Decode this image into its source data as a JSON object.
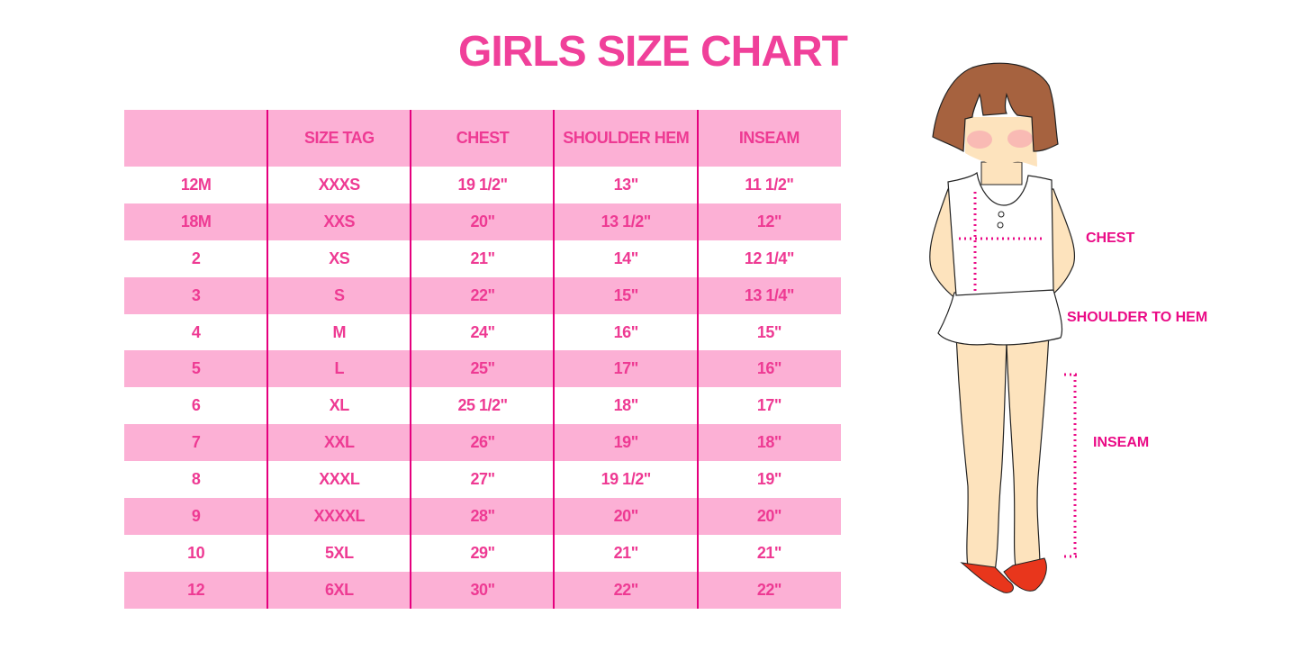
{
  "title": "GIRLS SIZE CHART",
  "table": {
    "headers": [
      "",
      "SIZE TAG",
      "CHEST",
      "SHOULDER HEM",
      "INSEAM"
    ],
    "rows": [
      [
        "12M",
        "XXXS",
        "19 1/2\"",
        "13\"",
        "11 1/2\""
      ],
      [
        "18M",
        "XXS",
        "20\"",
        "13 1/2\"",
        "12\""
      ],
      [
        "2",
        "XS",
        "21\"",
        "14\"",
        "12 1/4\""
      ],
      [
        "3",
        "S",
        "22\"",
        "15\"",
        "13 1/4\""
      ],
      [
        "4",
        "M",
        "24\"",
        "16\"",
        "15\""
      ],
      [
        "5",
        "L",
        "25\"",
        "17\"",
        "16\""
      ],
      [
        "6",
        "XL",
        "25 1/2\"",
        "18\"",
        "17\""
      ],
      [
        "7",
        "XXL",
        "26\"",
        "19\"",
        "18\""
      ],
      [
        "8",
        "XXXL",
        "27\"",
        "19 1/2\"",
        "19\""
      ],
      [
        "9",
        "XXXXL",
        "28\"",
        "20\"",
        "20\""
      ],
      [
        "10",
        "5XL",
        "29\"",
        "21\"",
        "21\""
      ],
      [
        "12",
        "6XL",
        "30\"",
        "22\"",
        "22\""
      ]
    ]
  },
  "illustration": {
    "labels": {
      "chest": "CHEST",
      "shoulder": "SHOULDER TO HEM",
      "inseam": "INSEAM"
    }
  },
  "colors": {
    "accent": "#ee3a93",
    "row_pink": "#fcb0d5",
    "divider": "#e5007e"
  }
}
